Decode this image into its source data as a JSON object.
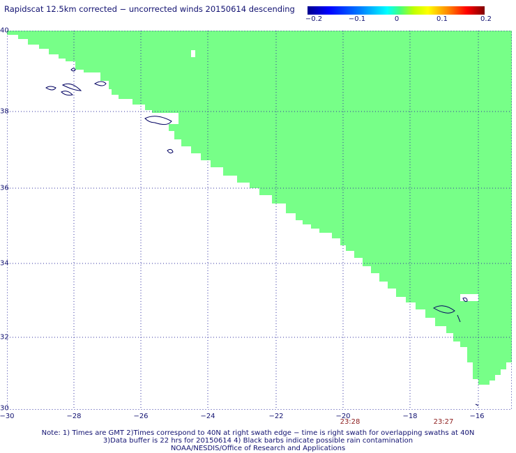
{
  "title": "Rapidscat 12.5km corrected − uncorrected winds 20150614 descending",
  "colorbar": {
    "ticks": [
      "−0.2",
      "−0.1",
      "0",
      "0.1",
      "0.2"
    ]
  },
  "axes": {
    "y_ticks": [
      "40",
      "38",
      "36",
      "34",
      "32",
      "30"
    ],
    "x_ticks": [
      "−30",
      "−28",
      "−26",
      "−24",
      "−22",
      "−20",
      "−18",
      "−16"
    ]
  },
  "swath_times": [
    "23:28",
    "23:27"
  ],
  "notes": [
    "Note: 1) Times are GMT 2)Times correspond to 40N at right swath edge − time is right swath for overlapping swaths at 40N",
    "3)Data buffer is 22 hrs for 20150614 4) Black barbs indicate possible rain contamination",
    "NOAA/NESDIS/Office of Research and Applications"
  ],
  "colors": {
    "swath_fill": "#77ff88",
    "coastline": "#000060",
    "gridline": "#3030a0",
    "time_label": "#8b1a1a"
  }
}
